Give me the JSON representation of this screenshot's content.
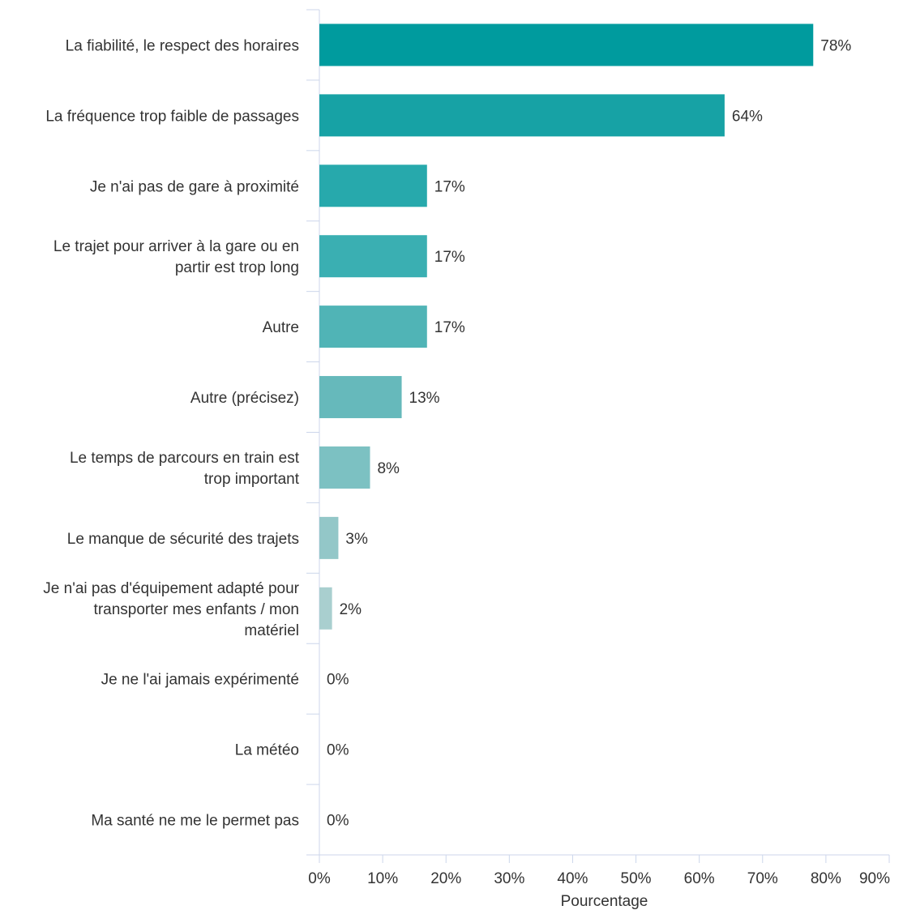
{
  "chart_data": {
    "type": "bar",
    "orientation": "horizontal",
    "categories": [
      "La fiabilité, le respect des horaires",
      "La fréquence trop faible de passages",
      "Je n'ai pas de gare à proximité",
      "Le trajet pour arriver à la gare ou en partir est trop long",
      "Autre",
      "Autre (précisez)",
      "Le temps de parcours en train est trop important",
      "Le manque de sécurité des trajets",
      "Je n'ai pas d'équipement adapté pour transporter mes enfants / mon matériel",
      "Je ne l'ai jamais expérimenté",
      "La météo",
      "Ma santé ne me le permet pas"
    ],
    "category_lines": [
      [
        "La fiabilité, le respect des horaires"
      ],
      [
        "La fréquence trop faible de passages"
      ],
      [
        "Je n'ai pas de gare à proximité"
      ],
      [
        "Le trajet pour arriver à la gare ou en",
        "partir est trop long"
      ],
      [
        "Autre"
      ],
      [
        "Autre (précisez)"
      ],
      [
        "Le temps de parcours en train est",
        "trop important"
      ],
      [
        "Le manque de sécurité des trajets"
      ],
      [
        "Je n'ai pas d'équipement adapté pour",
        "transporter mes enfants / mon",
        "matériel"
      ],
      [
        "Je ne l'ai jamais expérimenté"
      ],
      [
        "La météo"
      ],
      [
        "Ma santé ne me le permet pas"
      ]
    ],
    "values": [
      78,
      64,
      17,
      17,
      17,
      13,
      8,
      3,
      2,
      0,
      0,
      0
    ],
    "value_labels": [
      "78%",
      "64%",
      "17%",
      "17%",
      "17%",
      "13%",
      "8%",
      "3%",
      "2%",
      "0%",
      "0%",
      "0%"
    ],
    "bar_colors": [
      "#009b9e",
      "#17a2a5",
      "#27a9ac",
      "#3aafb2",
      "#50b4b6",
      "#66b9bb",
      "#7cc1c2",
      "#93c7c8",
      "#a9cfcf",
      "#bcd8d8",
      "#cbe0e0",
      "#d6e6e6"
    ],
    "xlabel": "Pourcentage",
    "ylabel": "",
    "xlim": [
      0,
      90
    ],
    "x_ticks": [
      0,
      10,
      20,
      30,
      40,
      50,
      60,
      70,
      80,
      90
    ],
    "x_tick_labels": [
      "0%",
      "10%",
      "20%",
      "30%",
      "40%",
      "50%",
      "60%",
      "70%",
      "80%",
      "90%"
    ],
    "grid": false,
    "axis_color": "#ccd6eb"
  }
}
